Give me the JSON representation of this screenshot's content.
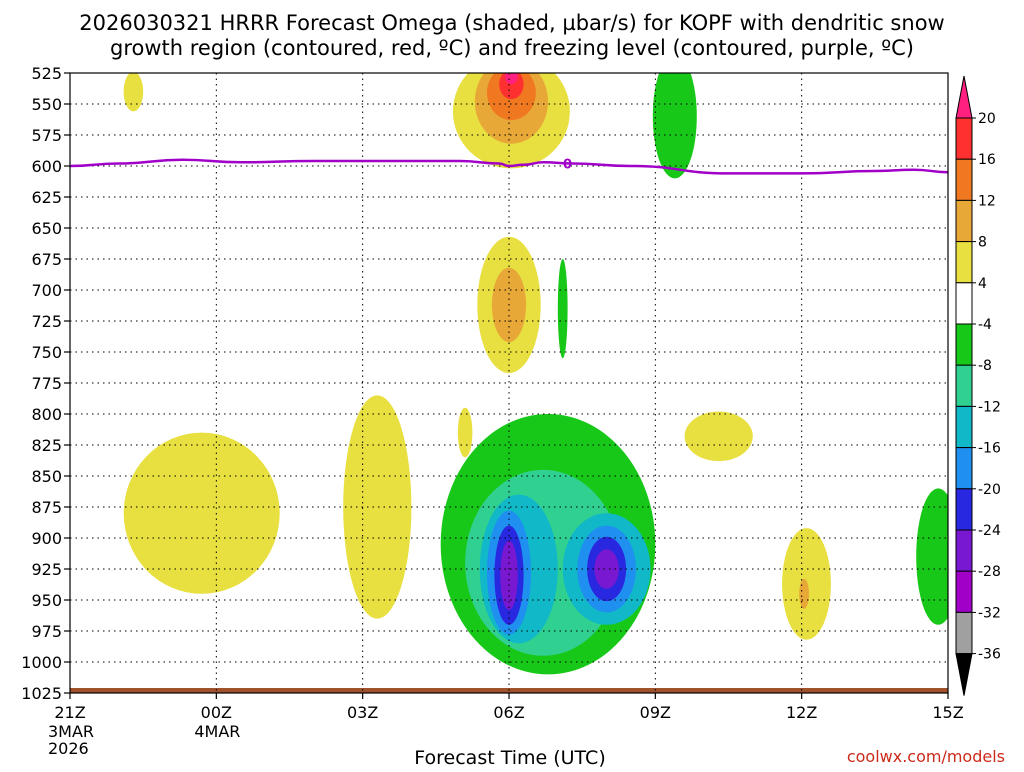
{
  "chart_data": {
    "type": "heatmap",
    "title_line1": "2026030321 HRRR Forecast Omega (shaded, µbar/s) for KOPF with dendritic snow",
    "title_line2": "growth region (contoured, red, ºC) and freezing level (contoured, purple, ºC)",
    "xlabel": "Forecast Time (UTC)",
    "watermark": "coolwx.com/models",
    "y_axis": {
      "unit": "hPa",
      "range": [
        525,
        1025
      ],
      "ticks": [
        "525",
        "550",
        "575",
        "600",
        "625",
        "650",
        "675",
        "700",
        "725",
        "750",
        "775",
        "800",
        "825",
        "850",
        "875",
        "900",
        "925",
        "950",
        "975",
        "1000",
        "1025"
      ]
    },
    "x_axis": {
      "unit": "forecast hour",
      "range": [
        0,
        18
      ],
      "ticks": [
        {
          "hour": 0,
          "label": "21Z",
          "sub1": "3MAR",
          "sub2": "2026"
        },
        {
          "hour": 3,
          "label": "00Z",
          "sub1": "4MAR",
          "sub2": ""
        },
        {
          "hour": 6,
          "label": "03Z",
          "sub1": "",
          "sub2": ""
        },
        {
          "hour": 9,
          "label": "06Z",
          "sub1": "",
          "sub2": ""
        },
        {
          "hour": 12,
          "label": "09Z",
          "sub1": "",
          "sub2": ""
        },
        {
          "hour": 15,
          "label": "12Z",
          "sub1": "",
          "sub2": ""
        },
        {
          "hour": 18,
          "label": "15Z",
          "sub1": "",
          "sub2": ""
        }
      ]
    },
    "colorbar": {
      "levels": [
        "20",
        "16",
        "12",
        "8",
        "4",
        "-4",
        "-8",
        "-12",
        "-16",
        "-20",
        "-24",
        "-28",
        "-32",
        "-36"
      ],
      "colors": [
        "#ff2080",
        "#ff3030",
        "#f07820",
        "#e8a838",
        "#e8e040",
        "#ffffff",
        "#18c818",
        "#30d090",
        "#10b8c8",
        "#2090f0",
        "#2828e0",
        "#7818d0",
        "#a000c8",
        "#a0a0a0",
        "#000000"
      ]
    },
    "freezing_level": {
      "label": "0",
      "color": "#a000c8",
      "points": [
        [
          0,
          600
        ],
        [
          1,
          598
        ],
        [
          2.3,
          595
        ],
        [
          3.5,
          597
        ],
        [
          5,
          596
        ],
        [
          6.5,
          596
        ],
        [
          8,
          596
        ],
        [
          8.8,
          598
        ],
        [
          9,
          600
        ],
        [
          9.3,
          599
        ],
        [
          9.7,
          597
        ],
        [
          10.3,
          598
        ],
        [
          11.5,
          600
        ],
        [
          13.5,
          606
        ],
        [
          15,
          606
        ],
        [
          16.5,
          604
        ],
        [
          17.3,
          603
        ],
        [
          18,
          605
        ]
      ]
    },
    "omega_regions": [
      {
        "category": "4",
        "center": [
          9.05,
          556
        ],
        "half_width": 1.2,
        "half_depth": 46,
        "note": "upper ascent core"
      },
      {
        "category": "8",
        "center": [
          9.05,
          548
        ],
        "half_width": 0.75,
        "half_depth": 34
      },
      {
        "category": "12",
        "center": [
          9.05,
          541
        ],
        "half_width": 0.5,
        "half_depth": 22
      },
      {
        "category": "16",
        "center": [
          9.05,
          534
        ],
        "half_width": 0.25,
        "half_depth": 12
      },
      {
        "category": "20",
        "center": [
          9.05,
          528
        ],
        "half_width": 0.13,
        "half_depth": 6
      },
      {
        "category": "4",
        "center": [
          9.0,
          712
        ],
        "half_width": 0.65,
        "half_depth": 55
      },
      {
        "category": "8",
        "center": [
          9.0,
          712
        ],
        "half_width": 0.35,
        "half_depth": 30
      },
      {
        "category": "-4",
        "center": [
          12.4,
          560
        ],
        "half_width": 0.45,
        "half_depth": 50
      },
      {
        "category": "-4",
        "center": [
          10.1,
          715
        ],
        "half_width": 0.1,
        "half_depth": 40
      },
      {
        "category": "-4",
        "center": [
          9.8,
          905
        ],
        "half_width": 2.2,
        "half_depth": 105,
        "note": "lower descent blob"
      },
      {
        "category": "-8",
        "center": [
          9.7,
          920
        ],
        "half_width": 1.6,
        "half_depth": 75
      },
      {
        "category": "-12",
        "center": [
          9.2,
          925
        ],
        "half_width": 0.8,
        "half_depth": 60
      },
      {
        "category": "-16",
        "center": [
          9.0,
          928
        ],
        "half_width": 0.45,
        "half_depth": 50
      },
      {
        "category": "-20",
        "center": [
          9.0,
          930
        ],
        "half_width": 0.3,
        "half_depth": 40
      },
      {
        "category": "-24",
        "center": [
          9.0,
          930
        ],
        "half_width": 0.18,
        "half_depth": 28
      },
      {
        "category": "-12",
        "center": [
          11.0,
          925
        ],
        "half_width": 0.9,
        "half_depth": 45
      },
      {
        "category": "-16",
        "center": [
          11.0,
          925
        ],
        "half_width": 0.6,
        "half_depth": 35
      },
      {
        "category": "-20",
        "center": [
          11.0,
          925
        ],
        "half_width": 0.4,
        "half_depth": 26
      },
      {
        "category": "-24",
        "center": [
          11.0,
          925
        ],
        "half_width": 0.25,
        "half_depth": 16
      },
      {
        "category": "-4",
        "center": [
          17.8,
          915
        ],
        "half_width": 0.45,
        "half_depth": 55
      },
      {
        "category": "4",
        "center": [
          1.3,
          540
        ],
        "half_width": 0.2,
        "half_depth": 16
      },
      {
        "category": "4",
        "center": [
          2.7,
          880
        ],
        "half_width": 1.6,
        "half_depth": 65
      },
      {
        "category": "4",
        "center": [
          6.3,
          875
        ],
        "half_width": 0.7,
        "half_depth": 90
      },
      {
        "category": "4",
        "center": [
          8.1,
          815
        ],
        "half_width": 0.15,
        "half_depth": 20
      },
      {
        "category": "4",
        "center": [
          13.3,
          818
        ],
        "half_width": 0.7,
        "half_depth": 20
      },
      {
        "category": "4",
        "center": [
          15.1,
          937
        ],
        "half_width": 0.5,
        "half_depth": 45
      },
      {
        "category": "8",
        "center": [
          15.05,
          945
        ],
        "half_width": 0.1,
        "half_depth": 12
      }
    ],
    "ground_band": {
      "pressure_top": 1021,
      "color": "#a0522d"
    }
  }
}
